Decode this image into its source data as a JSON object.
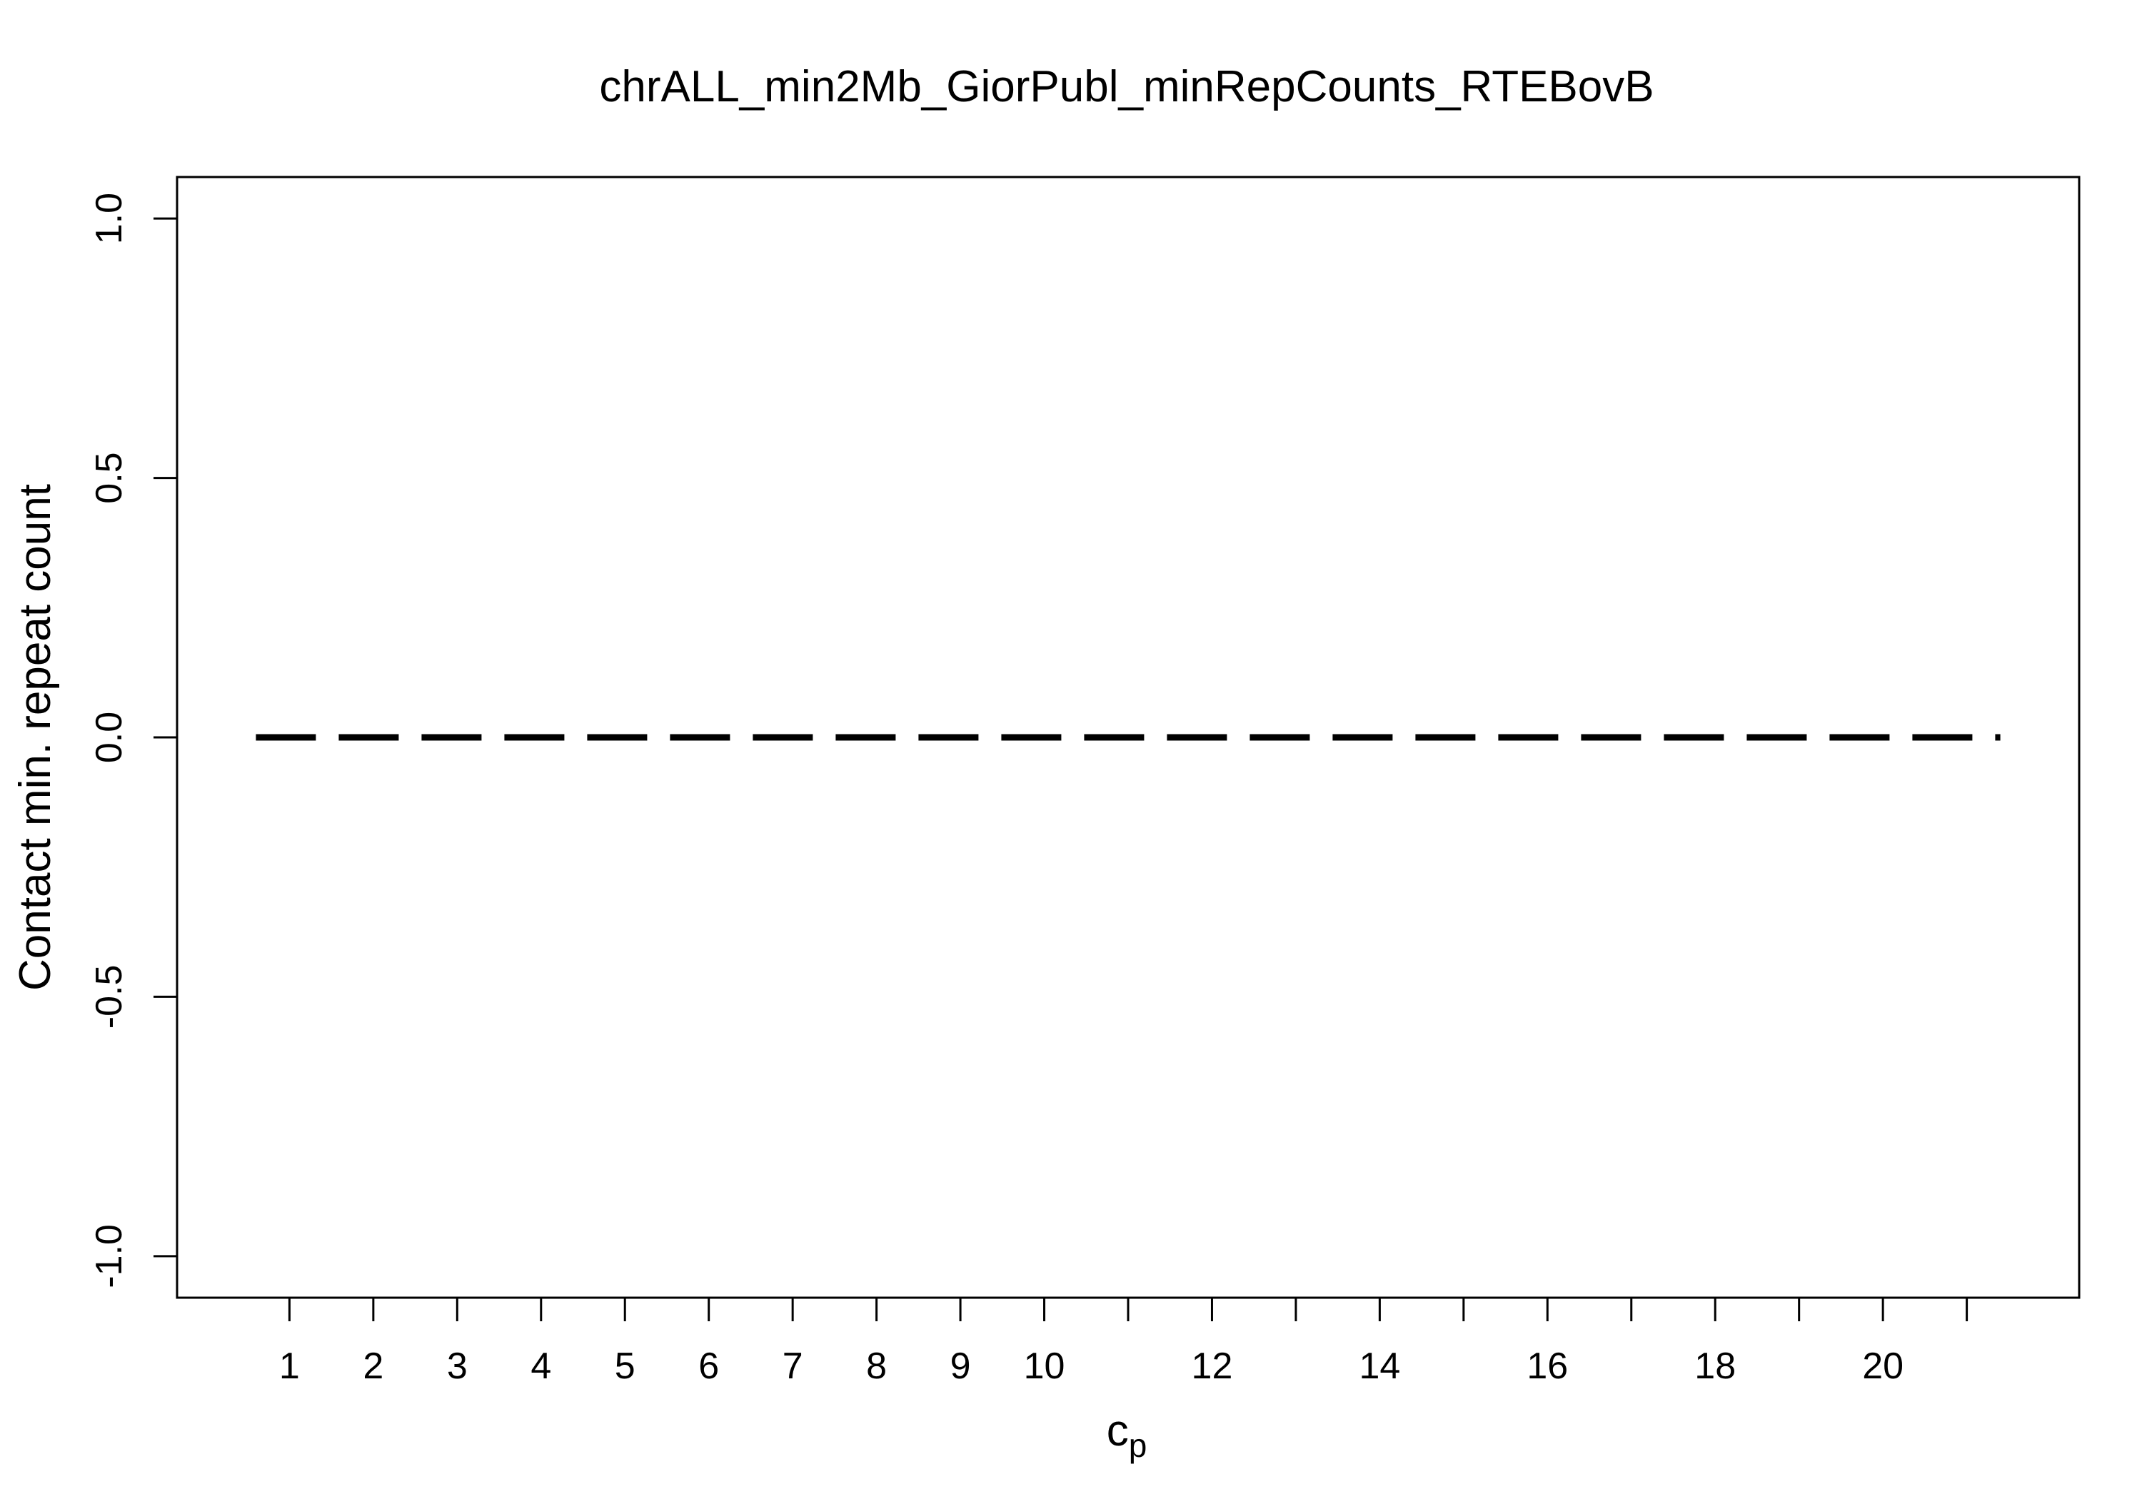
{
  "chart_data": {
    "type": "line",
    "title": "chrALL_min2Mb_GiorPubl_minRepCounts_RTEBovB",
    "xlabel": "c",
    "xlabel_subscript": "p",
    "ylabel": "Contact min. repeat count",
    "x": [
      1,
      2,
      3,
      4,
      5,
      6,
      7,
      8,
      9,
      10,
      11,
      12,
      13,
      14,
      15,
      16,
      17,
      18,
      19,
      20,
      21
    ],
    "x_tick_labels": [
      "1",
      "2",
      "3",
      "4",
      "5",
      "6",
      "7",
      "8",
      "9",
      "10",
      "",
      "12",
      "",
      "14",
      "",
      "16",
      "",
      "18",
      "",
      "20",
      ""
    ],
    "series": [
      {
        "values": [
          0,
          0,
          0,
          0,
          0,
          0,
          0,
          0,
          0,
          0,
          0,
          0,
          0,
          0,
          0,
          0,
          0,
          0,
          0,
          0,
          0
        ],
        "line_style": "dashed",
        "color": "#000000"
      }
    ],
    "line_x_range": [
      0.6,
      21.4
    ],
    "y_ticks": [
      -1.0,
      -0.5,
      0.0,
      0.5,
      1.0
    ],
    "y_tick_labels": [
      "-1.0",
      "-0.5",
      "0.0",
      "0.5",
      "1.0"
    ],
    "xlim": [
      -0.34,
      22.34
    ],
    "ylim": [
      -1.08,
      1.08
    ],
    "grid": false,
    "legend": "none"
  }
}
